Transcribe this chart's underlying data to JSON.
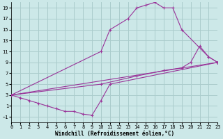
{
  "bg_color": "#cce8e8",
  "grid_color": "#aacccc",
  "line_color": "#993399",
  "xlim": [
    0,
    23
  ],
  "ylim": [
    -2,
    20
  ],
  "xticks": [
    0,
    1,
    2,
    3,
    4,
    5,
    6,
    7,
    8,
    9,
    10,
    11,
    12,
    13,
    14,
    15,
    16,
    17,
    18,
    19,
    20,
    21,
    22,
    23
  ],
  "yticks": [
    -1,
    1,
    3,
    5,
    7,
    9,
    11,
    13,
    15,
    17,
    19
  ],
  "xlabel": "Windchill (Refroidissement éolien,°C)",
  "line1_x": [
    0,
    10,
    11,
    13,
    14,
    15,
    16,
    17,
    18,
    19,
    22,
    23
  ],
  "line1_y": [
    3,
    11,
    15,
    17,
    19,
    19.5,
    20,
    19,
    19,
    15,
    10,
    9
  ],
  "line2_x": [
    0,
    1,
    2,
    3,
    4,
    5,
    6,
    7,
    8,
    9,
    10,
    11,
    23
  ],
  "line2_y": [
    3,
    2.5,
    2,
    1.5,
    1,
    0.5,
    0,
    0,
    -0.5,
    -0.7,
    2,
    5,
    9
  ],
  "line3_x": [
    0,
    23
  ],
  "line3_y": [
    3,
    9
  ],
  "line4_x": [
    0,
    10,
    14,
    17,
    19,
    20,
    21,
    22,
    23
  ],
  "line4_y": [
    3,
    5,
    6.5,
    7.5,
    8,
    9,
    12,
    10,
    9
  ]
}
